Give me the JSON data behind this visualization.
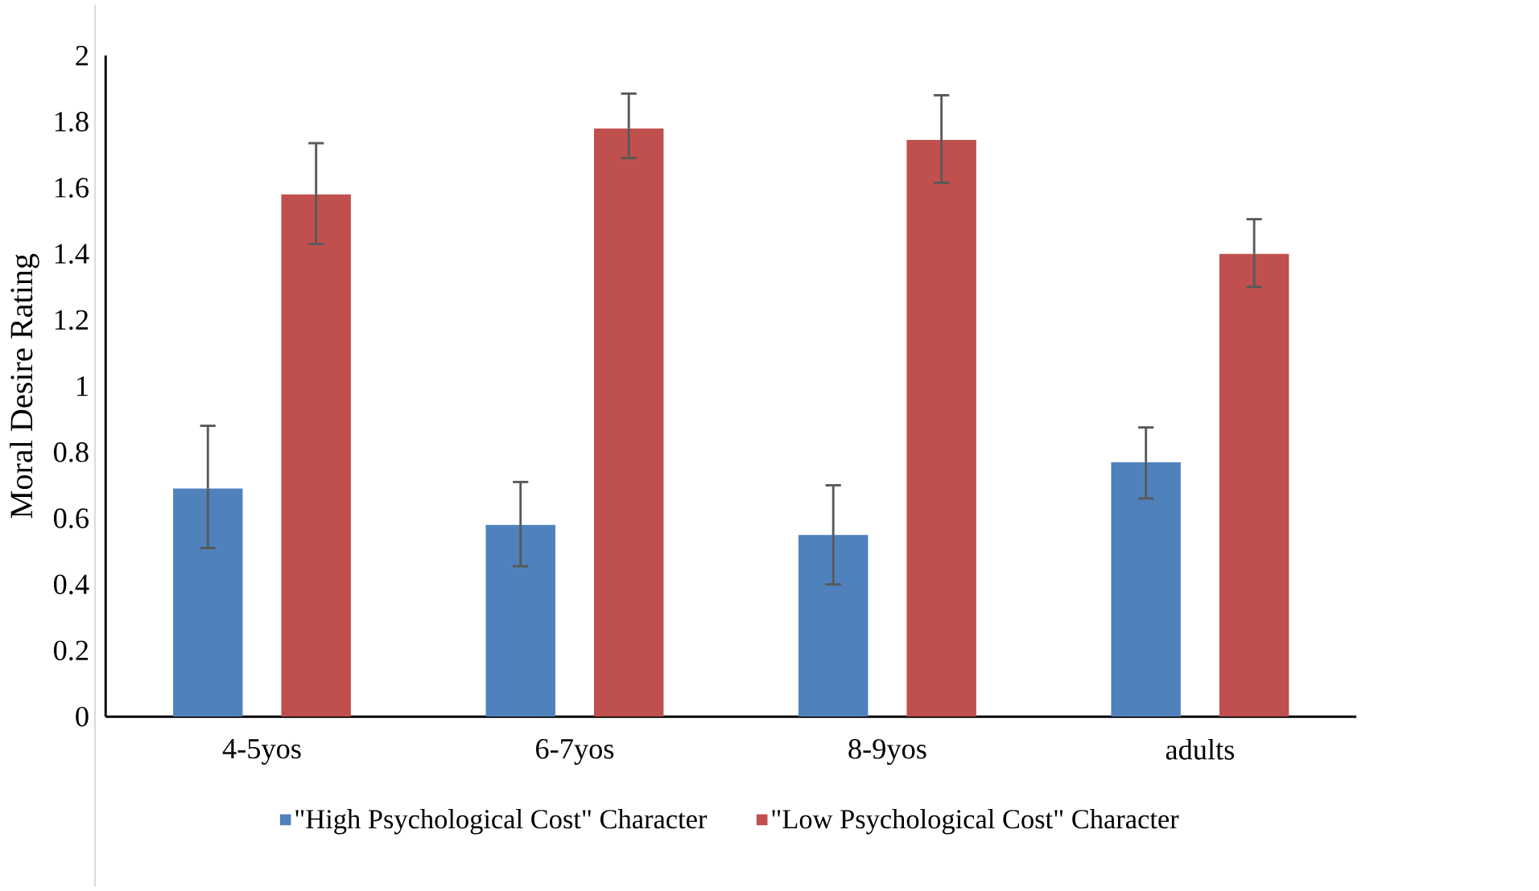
{
  "chart_data": {
    "type": "bar",
    "ylabel": "Moral Desire Rating",
    "categories": [
      "4-5yos",
      "6-7yos",
      "8-9yos",
      "adults"
    ],
    "series": [
      {
        "name": "\"High Psychological Cost\" Character",
        "color": "#4f81bd",
        "values": [
          0.69,
          0.58,
          0.55,
          0.77
        ],
        "errors": [
          [
            0.51,
            0.88
          ],
          [
            0.455,
            0.71
          ],
          [
            0.4,
            0.7
          ],
          [
            0.66,
            0.875
          ]
        ]
      },
      {
        "name": "\"Low Psychological Cost\" Character",
        "color": "#c0504d",
        "values": [
          1.58,
          1.78,
          1.745,
          1.4
        ],
        "errors": [
          [
            1.43,
            1.735
          ],
          [
            1.69,
            1.885
          ],
          [
            1.615,
            1.88
          ],
          [
            1.3,
            1.505
          ]
        ]
      }
    ],
    "ylim": [
      0,
      2
    ],
    "yticks": [
      0,
      0.2,
      0.4,
      0.6,
      0.8,
      1,
      1.2,
      1.4,
      1.6,
      1.8,
      2
    ],
    "grid": false,
    "legend": "bottom"
  }
}
